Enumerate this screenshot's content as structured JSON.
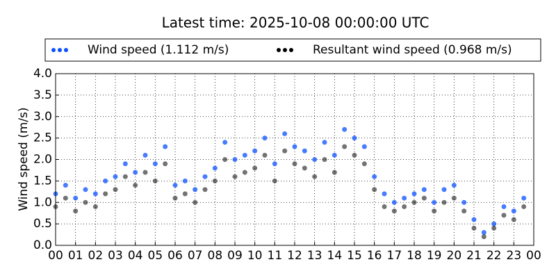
{
  "chart_data": {
    "type": "scatter",
    "title": "Latest time: 2025-10-08 00:00:00 UTC",
    "ylabel": "Wind speed (m/s)",
    "x": [
      0,
      0.5,
      1,
      1.5,
      2,
      2.5,
      3,
      3.5,
      4,
      4.5,
      5,
      5.5,
      6,
      6.5,
      7,
      7.5,
      8,
      8.5,
      9,
      9.5,
      10,
      10.5,
      11,
      11.5,
      12,
      12.5,
      13,
      13.5,
      14,
      14.5,
      15,
      15.5,
      16,
      16.5,
      17,
      17.5,
      18,
      18.5,
      19,
      19.5,
      20,
      20.5,
      21,
      21.5,
      22,
      22.5,
      23,
      23.5
    ],
    "series": [
      {
        "name": "Wind speed (1.112 m/s)",
        "color": "#0a50ff",
        "values": [
          1.2,
          1.4,
          1.1,
          1.3,
          1.2,
          1.5,
          1.6,
          1.9,
          1.7,
          2.1,
          1.9,
          2.3,
          1.4,
          1.5,
          1.3,
          1.6,
          1.8,
          2.4,
          2.0,
          2.1,
          2.2,
          2.5,
          1.9,
          2.6,
          2.3,
          2.2,
          2.0,
          2.4,
          2.1,
          2.7,
          2.5,
          2.3,
          1.6,
          1.2,
          1.0,
          1.1,
          1.2,
          1.3,
          1.0,
          1.3,
          1.4,
          1.0,
          0.6,
          0.3,
          0.5,
          0.9,
          0.8,
          1.1
        ]
      },
      {
        "name": "Resultant wind speed (0.968 m/s)",
        "color": "#000000",
        "values": [
          0.9,
          1.1,
          0.8,
          1.0,
          0.9,
          1.2,
          1.3,
          1.6,
          1.4,
          1.7,
          1.5,
          1.9,
          1.1,
          1.2,
          1.0,
          1.3,
          1.5,
          2.0,
          1.6,
          1.7,
          1.8,
          2.1,
          1.5,
          2.2,
          1.9,
          1.8,
          1.6,
          2.0,
          1.7,
          2.3,
          2.1,
          1.9,
          1.3,
          0.9,
          0.8,
          0.9,
          1.0,
          1.1,
          0.8,
          1.0,
          1.1,
          0.8,
          0.4,
          0.2,
          0.4,
          0.7,
          0.6,
          0.9
        ]
      }
    ],
    "xlim": [
      0,
      24
    ],
    "xticks": [
      {
        "value": 0,
        "label": "00"
      },
      {
        "value": 1,
        "label": "01"
      },
      {
        "value": 2,
        "label": "02"
      },
      {
        "value": 3,
        "label": "03"
      },
      {
        "value": 4,
        "label": "04"
      },
      {
        "value": 5,
        "label": "05"
      },
      {
        "value": 6,
        "label": "06"
      },
      {
        "value": 7,
        "label": "07"
      },
      {
        "value": 8,
        "label": "08"
      },
      {
        "value": 9,
        "label": "09"
      },
      {
        "value": 10,
        "label": "10"
      },
      {
        "value": 11,
        "label": "11"
      },
      {
        "value": 12,
        "label": "12"
      },
      {
        "value": 13,
        "label": "13"
      },
      {
        "value": 14,
        "label": "14"
      },
      {
        "value": 15,
        "label": "15"
      },
      {
        "value": 16,
        "label": "16"
      },
      {
        "value": 17,
        "label": "17"
      },
      {
        "value": 18,
        "label": "18"
      },
      {
        "value": 19,
        "label": "19"
      },
      {
        "value": 20,
        "label": "20"
      },
      {
        "value": 21,
        "label": "21"
      },
      {
        "value": 22,
        "label": "22"
      },
      {
        "value": 23,
        "label": "23"
      },
      {
        "value": 24,
        "label": "00"
      }
    ],
    "ylim": [
      0,
      4
    ],
    "yticks": [
      {
        "value": 0,
        "label": "0.0"
      },
      {
        "value": 0.5,
        "label": "0.5"
      },
      {
        "value": 1,
        "label": "1.0"
      },
      {
        "value": 1.5,
        "label": "1.5"
      },
      {
        "value": 2,
        "label": "2.0"
      },
      {
        "value": 2.5,
        "label": "2.5"
      },
      {
        "value": 3,
        "label": "3.0"
      },
      {
        "value": 3.5,
        "label": "3.5"
      },
      {
        "value": 4,
        "label": "4.0"
      }
    ],
    "grid": true
  }
}
